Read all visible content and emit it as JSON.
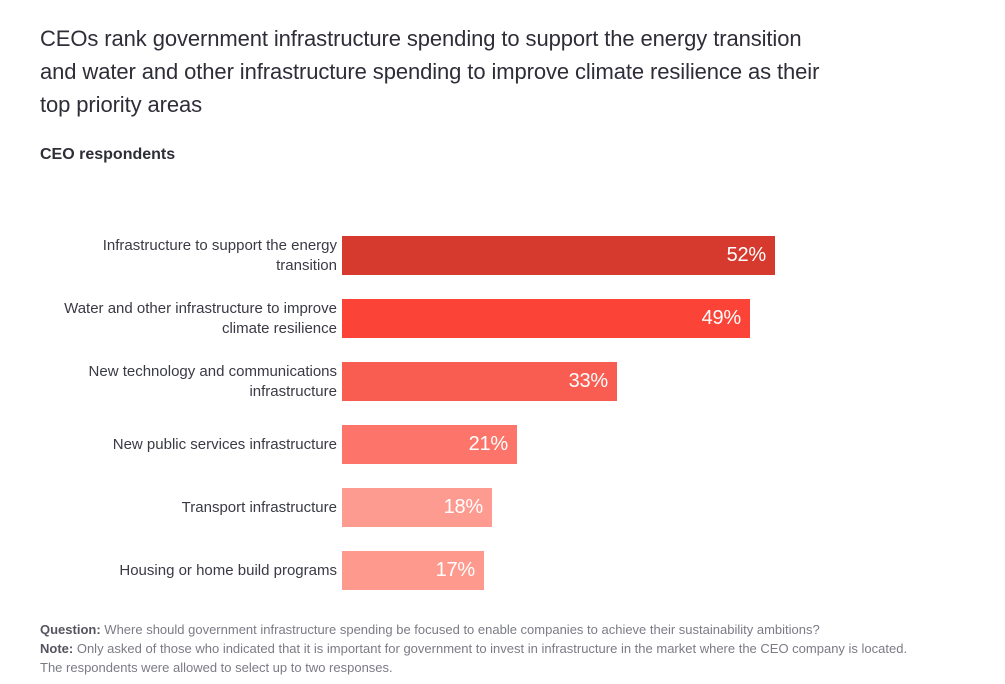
{
  "header": {
    "title": "CEOs rank government infrastructure spending to support the energy transition\nand water and other infrastructure spending to improve climate resilience as their\ntop priority areas",
    "subtitle": "CEO respondents"
  },
  "chart_data": {
    "type": "bar",
    "orientation": "horizontal",
    "title": "CEO respondents",
    "categories": [
      "Infrastructure to support the energy transition",
      "Water and other infrastructure to improve climate resilience",
      "New technology and communications infrastructure",
      "New public services infrastructure",
      "Transport infrastructure",
      "Housing or home build programs"
    ],
    "values": [
      52,
      49,
      33,
      21,
      18,
      17
    ],
    "value_suffix": "%",
    "value_labels": [
      "52%",
      "49%",
      "33%",
      "21%",
      "18%",
      "17%"
    ],
    "bar_colors": [
      "#d6392d",
      "#fc4337",
      "#f95d52",
      "#fd756a",
      "#fd9b90",
      "#fd998d"
    ],
    "xlim": [
      0,
      60
    ],
    "grid": false,
    "legend": false,
    "value_label_position": "inside-end",
    "value_label_color": "#ffffff"
  },
  "footer": {
    "question_label": "Question:",
    "question_text": "Where should government infrastructure spending be focused to enable companies to achieve their sustainability ambitions?",
    "note_label": "Note:",
    "note_text": "Only asked of those who indicated that it is important for government to invest in infrastructure in the market where the CEO company is located.\nThe respondents were allowed to select up to two responses."
  },
  "colors": {
    "background": "#ffffff",
    "title_text": "#2e2e38",
    "category_label_text": "#3a3a44",
    "footer_text": "#7b7b85",
    "footer_label_text": "#55555f"
  }
}
